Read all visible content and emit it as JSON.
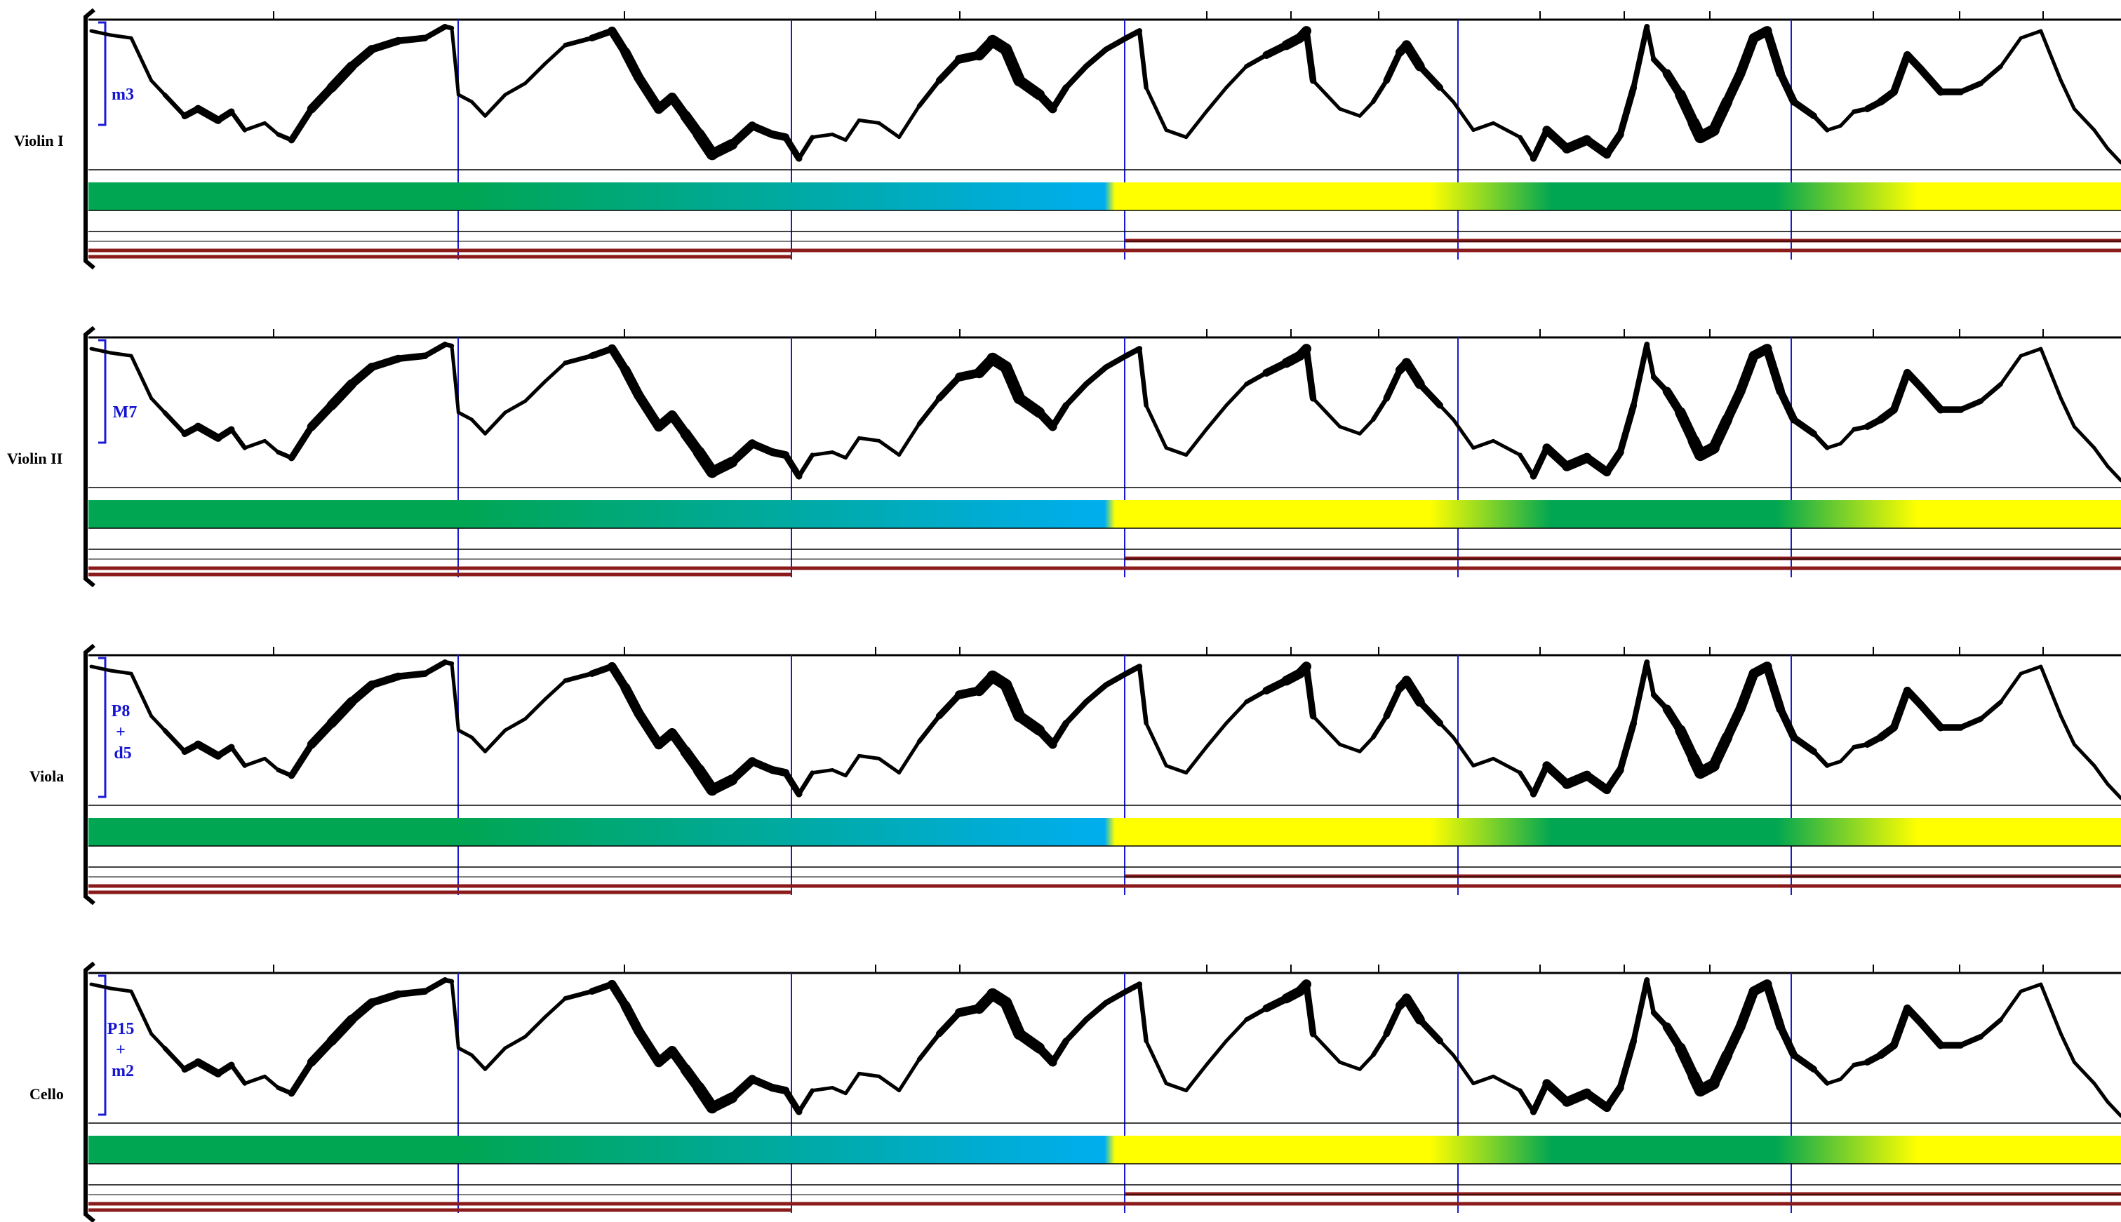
{
  "staves": [
    {
      "instrument": "Violin I",
      "interval_lines": [
        "m3"
      ]
    },
    {
      "instrument": "Violin II",
      "interval_lines": [
        "M7"
      ]
    },
    {
      "instrument": "Viola",
      "interval_lines": [
        "P8",
        "+",
        "d5"
      ]
    },
    {
      "instrument": "Cello",
      "interval_lines": [
        "P15",
        "+",
        "m2"
      ]
    }
  ],
  "colors": {
    "contour": "#000000",
    "barline": "#1a1ad6",
    "interval_label": "#1414d2",
    "band_green": "#00a651",
    "band_blue": "#00aeef",
    "band_yellow": "#ffff00",
    "dynamics_red": "#8b1a1a"
  },
  "measures": 7,
  "contour_points": [
    [
      0,
      0.95,
      1
    ],
    [
      0.15,
      0.92,
      1
    ],
    [
      0.3,
      0.9,
      1
    ],
    [
      0.45,
      0.6,
      1
    ],
    [
      0.55,
      0.5,
      1
    ],
    [
      0.7,
      0.35,
      2
    ],
    [
      0.8,
      0.4,
      3
    ],
    [
      0.95,
      0.32,
      3
    ],
    [
      1.05,
      0.38,
      2
    ],
    [
      1.15,
      0.25,
      1
    ],
    [
      1.3,
      0.3,
      1
    ],
    [
      1.4,
      0.22,
      1
    ],
    [
      1.5,
      0.18,
      2
    ],
    [
      1.65,
      0.4,
      3
    ],
    [
      1.8,
      0.55,
      4
    ],
    [
      1.95,
      0.7,
      4
    ],
    [
      2.1,
      0.82,
      3
    ],
    [
      2.3,
      0.88,
      3
    ],
    [
      2.5,
      0.9,
      2
    ],
    [
      2.65,
      0.98,
      2
    ],
    [
      2.7,
      0.97,
      1
    ],
    [
      2.75,
      0.5,
      1
    ],
    [
      2.85,
      0.45,
      1
    ],
    [
      2.95,
      0.35,
      1
    ],
    [
      3.1,
      0.5,
      1
    ],
    [
      3.25,
      0.58,
      1
    ],
    [
      3.4,
      0.72,
      1
    ],
    [
      3.55,
      0.85,
      1
    ],
    [
      3.75,
      0.9,
      2
    ],
    [
      3.9,
      0.95,
      3
    ],
    [
      4.0,
      0.8,
      4
    ],
    [
      4.1,
      0.62,
      4
    ],
    [
      4.25,
      0.4,
      4
    ],
    [
      4.35,
      0.48,
      4
    ],
    [
      4.45,
      0.35,
      4
    ],
    [
      4.55,
      0.22,
      5
    ],
    [
      4.65,
      0.08,
      5
    ],
    [
      4.8,
      0.15,
      4
    ],
    [
      4.95,
      0.28,
      3
    ],
    [
      5.1,
      0.22,
      3
    ],
    [
      5.2,
      0.2,
      3
    ],
    [
      5.3,
      0.05,
      2
    ],
    [
      5.4,
      0.2,
      1
    ],
    [
      5.55,
      0.22,
      1
    ],
    [
      5.65,
      0.18,
      1
    ],
    [
      5.75,
      0.32,
      1
    ],
    [
      5.9,
      0.3,
      1
    ],
    [
      6.05,
      0.2,
      1
    ],
    [
      6.2,
      0.42,
      1
    ],
    [
      6.35,
      0.6,
      2
    ],
    [
      6.5,
      0.75,
      3
    ],
    [
      6.65,
      0.78,
      4
    ],
    [
      6.75,
      0.88,
      5
    ],
    [
      6.85,
      0.82,
      5
    ],
    [
      6.95,
      0.6,
      5
    ],
    [
      7.1,
      0.5,
      4
    ],
    [
      7.2,
      0.4,
      3
    ],
    [
      7.3,
      0.55,
      2
    ],
    [
      7.45,
      0.7,
      2
    ],
    [
      7.6,
      0.82,
      2
    ],
    [
      7.75,
      0.9,
      2
    ],
    [
      7.85,
      0.95,
      2
    ],
    [
      7.9,
      0.55,
      1
    ],
    [
      7.95,
      0.45,
      1
    ],
    [
      8.05,
      0.25,
      1
    ],
    [
      8.2,
      0.2,
      1
    ],
    [
      8.35,
      0.38,
      1
    ],
    [
      8.5,
      0.55,
      1
    ],
    [
      8.65,
      0.7,
      1
    ],
    [
      8.8,
      0.78,
      2
    ],
    [
      8.95,
      0.85,
      4
    ],
    [
      9.05,
      0.9,
      4
    ],
    [
      9.1,
      0.95,
      4
    ],
    [
      9.15,
      0.6,
      1
    ],
    [
      9.25,
      0.5,
      1
    ],
    [
      9.35,
      0.4,
      1
    ],
    [
      9.5,
      0.35,
      1
    ],
    [
      9.6,
      0.45,
      1
    ],
    [
      9.7,
      0.6,
      2
    ],
    [
      9.8,
      0.8,
      3
    ],
    [
      9.85,
      0.85,
      4
    ],
    [
      9.95,
      0.7,
      4
    ],
    [
      10.1,
      0.55,
      1
    ],
    [
      10.2,
      0.45,
      1
    ],
    [
      10.35,
      0.25,
      1
    ],
    [
      10.5,
      0.3,
      1
    ],
    [
      10.7,
      0.2,
      1
    ],
    [
      10.8,
      0.05,
      2
    ],
    [
      10.9,
      0.25,
      3
    ],
    [
      11.05,
      0.12,
      4
    ],
    [
      11.2,
      0.18,
      4
    ],
    [
      11.35,
      0.08,
      3
    ],
    [
      11.45,
      0.22,
      3
    ],
    [
      11.55,
      0.55,
      2
    ],
    [
      11.65,
      0.98,
      2
    ],
    [
      11.7,
      0.75,
      1
    ],
    [
      11.8,
      0.65,
      3
    ],
    [
      11.9,
      0.5,
      4
    ],
    [
      12.0,
      0.3,
      5
    ],
    [
      12.05,
      0.2,
      5
    ],
    [
      12.15,
      0.25,
      5
    ],
    [
      12.25,
      0.45,
      4
    ],
    [
      12.35,
      0.65,
      4
    ],
    [
      12.45,
      0.9,
      4
    ],
    [
      12.55,
      0.95,
      4
    ],
    [
      12.65,
      0.65,
      3
    ],
    [
      12.75,
      0.45,
      3
    ],
    [
      12.9,
      0.35,
      2
    ],
    [
      13.0,
      0.25,
      1
    ],
    [
      13.1,
      0.28,
      1
    ],
    [
      13.2,
      0.38,
      1
    ],
    [
      13.3,
      0.4,
      2
    ],
    [
      13.4,
      0.45,
      3
    ],
    [
      13.5,
      0.52,
      3
    ],
    [
      13.6,
      0.78,
      3
    ],
    [
      13.7,
      0.68,
      3
    ],
    [
      13.85,
      0.52,
      3
    ],
    [
      14.0,
      0.52,
      2
    ],
    [
      14.15,
      0.58,
      2
    ],
    [
      14.3,
      0.7,
      1
    ],
    [
      14.45,
      0.9,
      1
    ],
    [
      14.6,
      0.95,
      1
    ],
    [
      14.75,
      0.6,
      1
    ],
    [
      14.85,
      0.4,
      1
    ],
    [
      15.0,
      0.25,
      1
    ],
    [
      15.1,
      0.12,
      1
    ],
    [
      15.2,
      0.02,
      1
    ]
  ]
}
